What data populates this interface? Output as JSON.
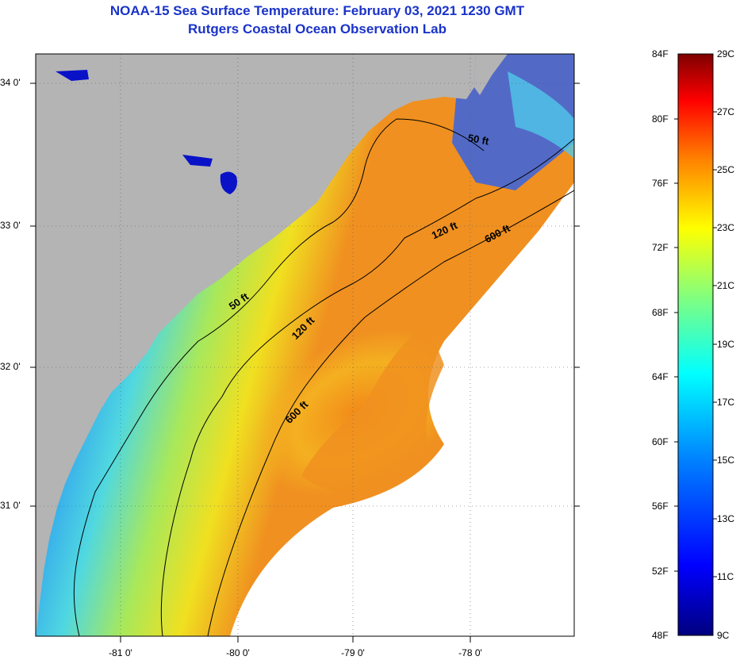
{
  "title": {
    "line1": "NOAA-15 Sea Surface Temperature:  February 03, 2021 1230 GMT",
    "line2": "Rutgers Coastal Ocean Observation Lab"
  },
  "axes": {
    "lat_labels": [
      "34 0'",
      "33 0'",
      "32 0'",
      "31 0'"
    ],
    "lon_labels": [
      "-81 0'",
      "-80 0'",
      "-79 0'",
      "-78 0'"
    ]
  },
  "contours": {
    "c50a": "50 ft",
    "c50b": "50 ft",
    "c120a": "120 ft",
    "c120b": "120 ft",
    "c600a": "600 ft",
    "c600b": "600 ft"
  },
  "colorbar": {
    "f_labels": [
      "84F",
      "80F",
      "76F",
      "72F",
      "68F",
      "64F",
      "60F",
      "56F",
      "52F",
      "48F"
    ],
    "c_labels": [
      "29C",
      "27C",
      "25C",
      "23C",
      "21C",
      "19C",
      "17C",
      "15C",
      "13C",
      "11C",
      "9C"
    ],
    "colors": [
      "#00007f",
      "#0000ff",
      "#007fff",
      "#00ffff",
      "#7fff7f",
      "#ffff00",
      "#ff7f00",
      "#ff0000",
      "#7f0000"
    ]
  },
  "colors": {
    "land": "#b4b4b4",
    "ocean_deep_blue": "#0a1ee6",
    "ocean_warm": "#f08c1e",
    "cloud": "#ffffff"
  }
}
